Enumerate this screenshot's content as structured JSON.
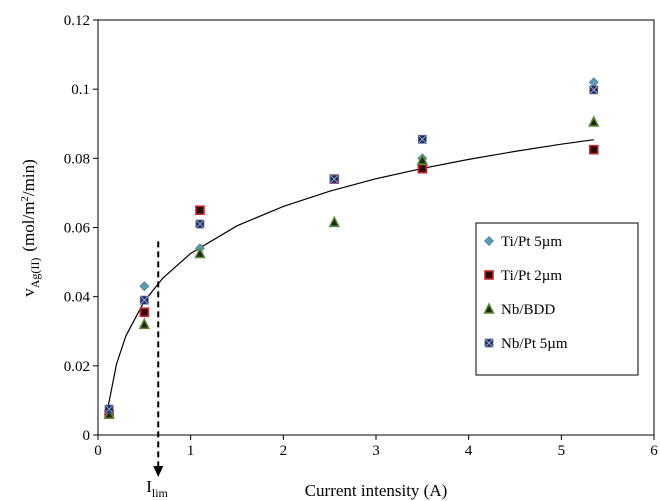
{
  "chart_data": {
    "type": "scatter",
    "title": "",
    "xlabel": "Current intensity (A)",
    "ylabel": {
      "base": "v",
      "subscript": "Ag(II)",
      "unit": "(mol/m",
      "unit_sup": "2",
      "unit_end": "/min)"
    },
    "xlim": [
      0,
      6
    ],
    "ylim": [
      0,
      0.12
    ],
    "x_ticks": [
      "0",
      "1",
      "2",
      "3",
      "4",
      "5",
      "6"
    ],
    "y_ticks": [
      "0",
      "0.02",
      "0.04",
      "0.06",
      "0.08",
      "0.1",
      "0.12"
    ],
    "grid": false,
    "legend_position": "right",
    "series": [
      {
        "name": "Ti/Pt 5µm",
        "marker": "diamond",
        "color": "#5b9bb5",
        "points": [
          [
            0.12,
            0.006
          ],
          [
            0.5,
            0.043
          ],
          [
            1.1,
            0.054
          ],
          [
            3.5,
            0.08
          ],
          [
            5.35,
            0.102
          ]
        ]
      },
      {
        "name": "Ti/Pt 2µm",
        "marker": "square",
        "color": "#c0282d",
        "points": [
          [
            0.12,
            0.006
          ],
          [
            0.5,
            0.0355
          ],
          [
            1.1,
            0.065
          ],
          [
            2.55,
            0.074
          ],
          [
            3.5,
            0.077
          ],
          [
            5.35,
            0.0825
          ]
        ]
      },
      {
        "name": "Nb/BDD",
        "marker": "triangle",
        "color": "#5e8a3a",
        "points": [
          [
            0.12,
            0.006
          ],
          [
            0.5,
            0.032
          ],
          [
            1.1,
            0.0525
          ],
          [
            2.55,
            0.0615
          ],
          [
            3.5,
            0.0795
          ],
          [
            5.35,
            0.0905
          ]
        ]
      },
      {
        "name": "Nb/Pt 5µm",
        "marker": "xsquare",
        "color": "#1e2a5a",
        "points": [
          [
            0.12,
            0.0075
          ],
          [
            0.5,
            0.039
          ],
          [
            1.1,
            0.061
          ],
          [
            2.55,
            0.074
          ],
          [
            3.5,
            0.0855
          ],
          [
            5.35,
            0.0998
          ]
        ]
      }
    ],
    "trendline": {
      "type": "log",
      "points": [
        [
          0.1,
          0.007
        ],
        [
          0.2,
          0.0205
        ],
        [
          0.3,
          0.0286
        ],
        [
          0.5,
          0.0387
        ],
        [
          0.7,
          0.0454
        ],
        [
          1,
          0.0525
        ],
        [
          1.5,
          0.0605
        ],
        [
          2,
          0.0661
        ],
        [
          2.5,
          0.0705
        ],
        [
          3,
          0.0741
        ],
        [
          3.5,
          0.0771
        ],
        [
          4,
          0.0797
        ],
        [
          4.5,
          0.082
        ],
        [
          5,
          0.0841
        ],
        [
          5.35,
          0.0854
        ]
      ]
    },
    "annotation": {
      "label_base": "I",
      "label_sub": "lim",
      "x": 0.65,
      "y_top": 0.056
    }
  }
}
